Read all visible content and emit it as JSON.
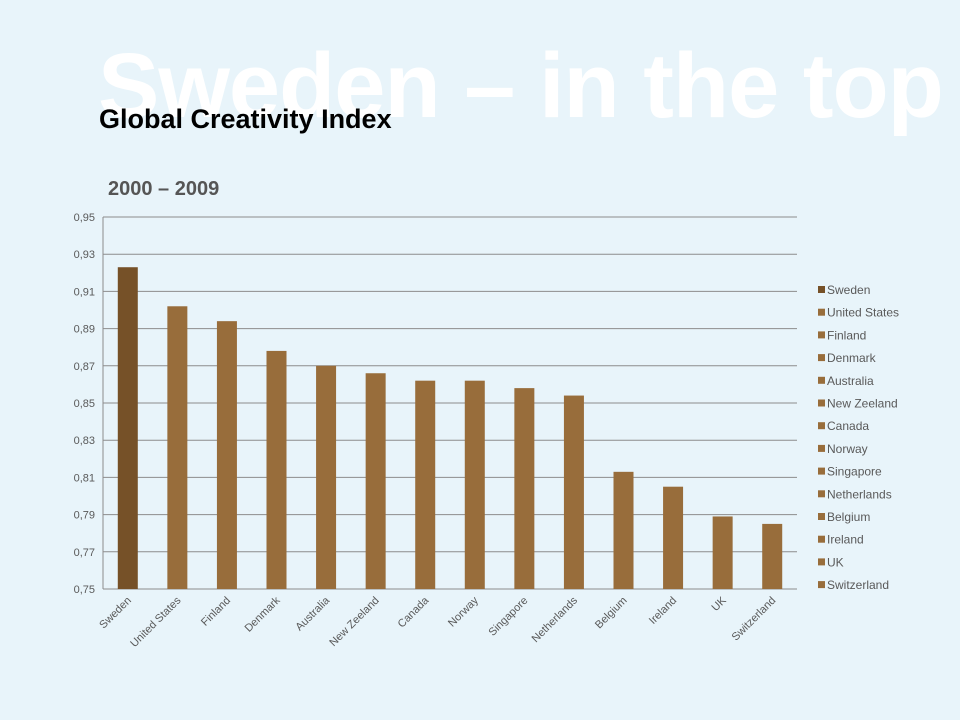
{
  "slide": {
    "background_heading": "Sweden – in the top"
  },
  "chart_data": {
    "type": "bar",
    "title": "Global Creativity Index",
    "subtitle": "2000 – 2009",
    "categories": [
      "Sweden",
      "United States",
      "Finland",
      "Denmark",
      "Australia",
      "New Zeeland",
      "Canada",
      "Norway",
      "Singapore",
      "Netherlands",
      "Belgium",
      "Ireland",
      "UK",
      "Switzerland"
    ],
    "values": [
      0.923,
      0.902,
      0.894,
      0.878,
      0.87,
      0.866,
      0.862,
      0.862,
      0.858,
      0.854,
      0.813,
      0.805,
      0.789,
      0.785
    ],
    "ylim": [
      0.75,
      0.95
    ],
    "yticks": [
      "0,75",
      "0,77",
      "0,79",
      "0,81",
      "0,83",
      "0,85",
      "0,87",
      "0,89",
      "0,91",
      "0,93",
      "0,95"
    ],
    "grid": true,
    "legend_position": "right",
    "colors": {
      "highlight": "#765128",
      "bar": "#986d3b",
      "grid": "#8c8c8c",
      "axis_text": "#595959"
    }
  }
}
